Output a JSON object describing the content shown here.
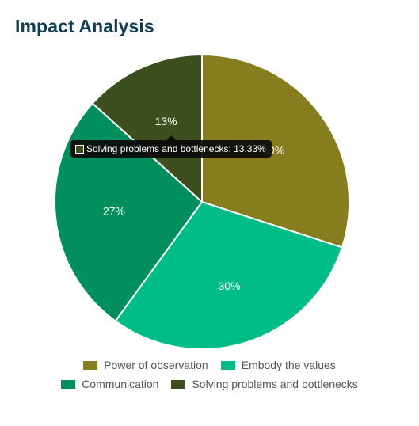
{
  "title": "Impact Analysis",
  "chart_data": {
    "type": "pie",
    "title": "Impact Analysis",
    "slices": [
      {
        "label": "Power of observation",
        "value": 30,
        "display": "30%",
        "color": "#857d1e"
      },
      {
        "label": "Embody the values",
        "value": 30,
        "display": "30%",
        "color": "#00bc87"
      },
      {
        "label": "Communication",
        "value": 26.67,
        "display": "27%",
        "color": "#008f5d"
      },
      {
        "label": "Solving problems and bottlenecks",
        "value": 13.33,
        "display": "13%",
        "color": "#3d4f1f"
      }
    ],
    "legend_position": "bottom"
  },
  "tooltip": {
    "text": "Solving problems and bottlenecks: 13.33%",
    "color": "#3d4f1f"
  }
}
